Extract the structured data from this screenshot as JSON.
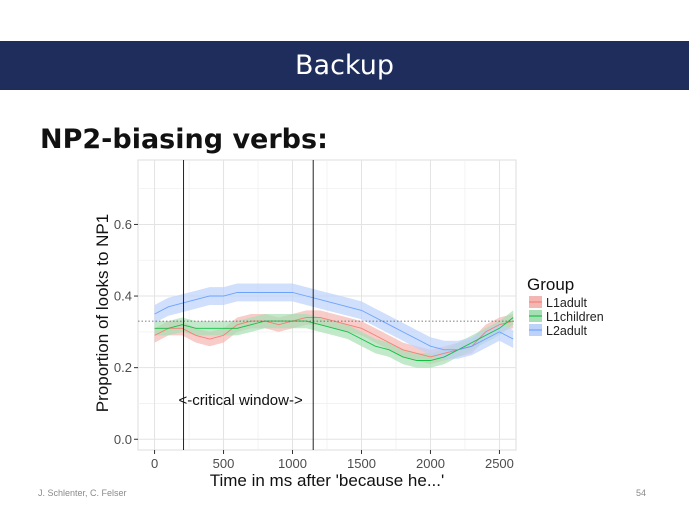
{
  "slide": {
    "title": "Backup",
    "heading": "NP2-biasing verbs:",
    "footer_left": "J. Schlenter, C. Felser",
    "page_number": "54"
  },
  "chart_data": {
    "type": "line",
    "title": "",
    "xlabel": "Time in ms after 'because he...'",
    "ylabel": "Proportion of looks to NP1",
    "xlim": [
      -120,
      2620
    ],
    "ylim": [
      -0.03,
      0.78
    ],
    "x_ticks": [
      0,
      500,
      1000,
      1500,
      2000,
      2500
    ],
    "y_ticks": [
      0.0,
      0.2,
      0.4,
      0.6
    ],
    "x_tick_labels": [
      "0",
      "500",
      "1000",
      "1500",
      "2000",
      "2500"
    ],
    "y_tick_labels": [
      "0.0",
      "0.2",
      "0.4",
      "0.6"
    ],
    "grid": true,
    "legend": {
      "title": "Group",
      "position": "right"
    },
    "reference_line_y": 0.33,
    "vertical_lines_x": [
      210,
      1150
    ],
    "annotation": "<-critical window->",
    "series": [
      {
        "name": "L1adult",
        "color": "#f8766d",
        "band_color": "#f4b6b2",
        "points": [
          [
            0,
            0.29
          ],
          [
            100,
            0.31
          ],
          [
            200,
            0.31
          ],
          [
            300,
            0.29
          ],
          [
            400,
            0.28
          ],
          [
            500,
            0.29
          ],
          [
            600,
            0.32
          ],
          [
            700,
            0.33
          ],
          [
            800,
            0.33
          ],
          [
            900,
            0.32
          ],
          [
            1000,
            0.33
          ],
          [
            1100,
            0.34
          ],
          [
            1200,
            0.34
          ],
          [
            1300,
            0.33
          ],
          [
            1400,
            0.32
          ],
          [
            1500,
            0.31
          ],
          [
            1600,
            0.29
          ],
          [
            1700,
            0.27
          ],
          [
            1800,
            0.25
          ],
          [
            1900,
            0.24
          ],
          [
            2000,
            0.23
          ],
          [
            2100,
            0.24
          ],
          [
            2200,
            0.25
          ],
          [
            2300,
            0.26
          ],
          [
            2400,
            0.3
          ],
          [
            2500,
            0.32
          ],
          [
            2600,
            0.33
          ]
        ],
        "band": 0.02
      },
      {
        "name": "L1children",
        "color": "#00ba38",
        "band_color": "#a6dfb4",
        "points": [
          [
            0,
            0.31
          ],
          [
            100,
            0.31
          ],
          [
            200,
            0.32
          ],
          [
            300,
            0.31
          ],
          [
            400,
            0.31
          ],
          [
            500,
            0.31
          ],
          [
            600,
            0.31
          ],
          [
            700,
            0.32
          ],
          [
            800,
            0.33
          ],
          [
            900,
            0.33
          ],
          [
            1000,
            0.33
          ],
          [
            1100,
            0.33
          ],
          [
            1200,
            0.32
          ],
          [
            1300,
            0.31
          ],
          [
            1400,
            0.3
          ],
          [
            1500,
            0.28
          ],
          [
            1600,
            0.26
          ],
          [
            1700,
            0.25
          ],
          [
            1800,
            0.23
          ],
          [
            1900,
            0.22
          ],
          [
            2000,
            0.22
          ],
          [
            2100,
            0.23
          ],
          [
            2200,
            0.25
          ],
          [
            2300,
            0.27
          ],
          [
            2400,
            0.29
          ],
          [
            2500,
            0.31
          ],
          [
            2600,
            0.34
          ]
        ],
        "band": 0.02
      },
      {
        "name": "L2adult",
        "color": "#619cff",
        "band_color": "#bcd2fb",
        "points": [
          [
            0,
            0.35
          ],
          [
            100,
            0.37
          ],
          [
            200,
            0.38
          ],
          [
            300,
            0.39
          ],
          [
            400,
            0.4
          ],
          [
            500,
            0.4
          ],
          [
            600,
            0.41
          ],
          [
            700,
            0.41
          ],
          [
            800,
            0.41
          ],
          [
            900,
            0.41
          ],
          [
            1000,
            0.41
          ],
          [
            1100,
            0.4
          ],
          [
            1200,
            0.39
          ],
          [
            1300,
            0.38
          ],
          [
            1400,
            0.37
          ],
          [
            1500,
            0.36
          ],
          [
            1600,
            0.34
          ],
          [
            1700,
            0.32
          ],
          [
            1800,
            0.3
          ],
          [
            1900,
            0.28
          ],
          [
            2000,
            0.26
          ],
          [
            2100,
            0.25
          ],
          [
            2200,
            0.25
          ],
          [
            2300,
            0.26
          ],
          [
            2400,
            0.28
          ],
          [
            2500,
            0.3
          ],
          [
            2600,
            0.28
          ]
        ],
        "band": 0.025
      }
    ]
  }
}
